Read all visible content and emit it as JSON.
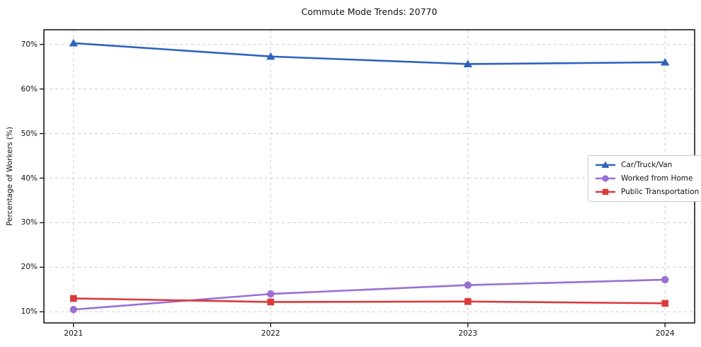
{
  "chart_data": {
    "type": "line",
    "title": "Commute Mode Trends: 20770",
    "xlabel": "",
    "ylabel": "Percentage of Workers (%)",
    "x": [
      2021,
      2022,
      2023,
      2024
    ],
    "categories": [
      "2021",
      "2022",
      "2023",
      "2024"
    ],
    "series": [
      {
        "name": "Car/Truck/Van",
        "color": "#2d63bd",
        "marker": "triangle",
        "values": [
          70.3,
          67.3,
          65.6,
          66.0
        ]
      },
      {
        "name": "Worked from Home",
        "color": "#9a6fd4",
        "marker": "circle",
        "values": [
          10.5,
          14.0,
          16.0,
          17.2
        ]
      },
      {
        "name": "Public Transportation",
        "color": "#dc3a3a",
        "marker": "square",
        "values": [
          13.0,
          12.2,
          12.3,
          11.9
        ]
      }
    ],
    "y_ticks": [
      10,
      20,
      30,
      40,
      50,
      60,
      70
    ],
    "y_tick_labels": [
      "10%",
      "20%",
      "30%",
      "40%",
      "50%",
      "60%",
      "70%"
    ],
    "xlim": [
      2020.85,
      2024.15
    ],
    "ylim": [
      7.5,
      73.3
    ],
    "grid": "dashed",
    "grid_color": "#cccccc",
    "axis_color": "#1a1a1a",
    "legend_position": "center-right",
    "legend": [
      "Car/Truck/Van",
      "Worked from Home",
      "Public Transportation"
    ]
  }
}
